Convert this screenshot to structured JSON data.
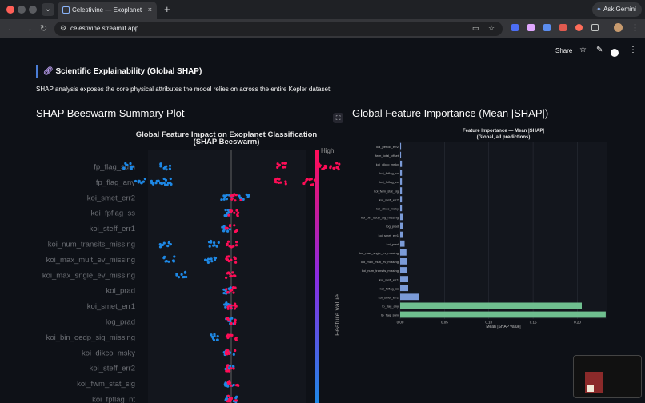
{
  "browser": {
    "tab_title": "Celestivine — Exoplanet Disco",
    "tab_close": "×",
    "new_tab": "+",
    "gemini_label": "Ask Gemini",
    "url": "celestivine.streamlit.app"
  },
  "app_toolbar": {
    "share_label": "Share"
  },
  "page": {
    "heading": "Scientific Explainability (Global SHAP)",
    "description": "SHAP analysis exposes the core physical attributes the model relies on across the entire Kepler dataset:",
    "beeswarm_section_title": "SHAP Beeswarm Summary Plot",
    "importance_section_title": "Global Feature Importance (Mean |SHAP|)"
  },
  "colors": {
    "page_bg": "#0e1117",
    "blue_low": "#1e88e5",
    "pink_high": "#ff0d57",
    "bar_blue": "#7b9bd8",
    "bar_green": "#6fbf8f",
    "accent": "#4a7dd6"
  },
  "icons": [
    "link-icon",
    "tune-icon",
    "reload-icon",
    "back-icon",
    "forward-icon",
    "star-icon",
    "pencil-icon",
    "github-icon",
    "expand-icon",
    "gemini-sparkle-icon"
  ],
  "chart_data": [
    {
      "type": "scatter",
      "title": "Global Feature Impact on Exoplanet Classification",
      "subtitle": "(SHAP Beeswarm)",
      "features": [
        "fp_flag_sum",
        "fp_flag_any",
        "koi_smet_err2",
        "koi_fpflag_ss",
        "koi_steff_err1",
        "koi_num_transits_missing",
        "koi_max_mult_ev_missing",
        "koi_max_sngle_ev_missing",
        "koi_prad",
        "koi_smet_err1",
        "log_prad",
        "koi_bin_oedp_sig_missing",
        "koi_dikco_msky",
        "koi_steff_err2",
        "koi_fwm_stat_sig",
        "koi_fpflag_nt"
      ],
      "colorbar": {
        "label": "Feature value",
        "high_label": "High"
      },
      "series": [
        {
          "feature": "fp_flag_sum",
          "low_shap": [
            -1.25,
            -0.8
          ],
          "high_shap": [
            0.6,
            1.1,
            1.25
          ]
        },
        {
          "feature": "fp_flag_any",
          "low_shap": [
            -1.1,
            -0.9,
            -0.75
          ],
          "high_shap": [
            0.6,
            0.95
          ]
        },
        {
          "feature": "koi_smet_err2",
          "low_shap": [
            -0.05,
            0.15
          ],
          "high_shap": [
            0.05
          ]
        },
        {
          "feature": "koi_fpflag_ss",
          "low_shap": [
            -0.02
          ],
          "high_shap": [
            0.02
          ]
        },
        {
          "feature": "koi_steff_err1",
          "low_shap": [
            -0.05
          ],
          "high_shap": [
            0.0
          ]
        },
        {
          "feature": "koi_num_transits_missing",
          "low_shap": [
            -0.8,
            -0.2
          ],
          "high_shap": [
            0.0
          ]
        },
        {
          "feature": "koi_max_mult_ev_missing",
          "low_shap": [
            -0.75,
            -0.25
          ],
          "high_shap": [
            0.0
          ]
        },
        {
          "feature": "koi_max_sngle_ev_missing",
          "low_shap": [
            -0.6
          ],
          "high_shap": [
            0.0
          ]
        },
        {
          "feature": "koi_prad",
          "low_shap": [
            -0.05
          ],
          "high_shap": [
            0.0
          ]
        },
        {
          "feature": "koi_smet_err1",
          "low_shap": [
            -0.02
          ],
          "high_shap": [
            0.02
          ]
        },
        {
          "feature": "log_prad",
          "low_shap": [
            -0.02
          ],
          "high_shap": [
            0.0
          ]
        },
        {
          "feature": "koi_bin_oedp_sig_missing",
          "low_shap": [
            -0.2
          ],
          "high_shap": [
            0.0
          ]
        },
        {
          "feature": "koi_dikco_msky",
          "low_shap": [
            -0.02
          ],
          "high_shap": [
            0.0
          ]
        },
        {
          "feature": "koi_steff_err2",
          "low_shap": [
            0.0
          ],
          "high_shap": [
            0.0
          ]
        },
        {
          "feature": "koi_fwm_stat_sig",
          "low_shap": [
            -0.02
          ],
          "high_shap": [
            0.02
          ]
        },
        {
          "feature": "koi_fpflag_nt",
          "low_shap": [
            0.0
          ],
          "high_shap": [
            0.0
          ]
        }
      ]
    },
    {
      "type": "bar",
      "orientation": "horizontal",
      "title": "Feature Importance — Mean |SHAP|",
      "subtitle": "(Global, all predictions)",
      "xlabel": "Mean |SHAP value|",
      "xlim": [
        0,
        0.233
      ],
      "xticks": [
        "0.00",
        "0.05",
        "0.10",
        "0.15",
        "0.20"
      ],
      "categories": [
        "koi_period_err2",
        "fwm_total_offset",
        "koi_dikco_msky",
        "koi_fpflag_co",
        "koi_fpflag_ec",
        "koi_fwm_stat_sig",
        "koi_steff_err2",
        "koi_dikco_msky",
        "koi_bin_oedp_sig_missing",
        "log_prad",
        "koi_smet_err1",
        "koi_prad",
        "koi_max_sngle_ev_missing",
        "koi_max_mult_ev_missing",
        "koi_num_transits_missing",
        "koi_steff_err1",
        "koi_fpflag_ss",
        "koi_smet_err2",
        "fp_flag_any",
        "fp_flag_sum"
      ],
      "values": [
        0.001,
        0.001,
        0.002,
        0.002,
        0.002,
        0.002,
        0.002,
        0.002,
        0.003,
        0.003,
        0.003,
        0.005,
        0.007,
        0.008,
        0.008,
        0.009,
        0.009,
        0.021,
        0.205,
        0.232
      ],
      "highlight": [
        "fp_flag_any",
        "fp_flag_sum"
      ]
    }
  ]
}
